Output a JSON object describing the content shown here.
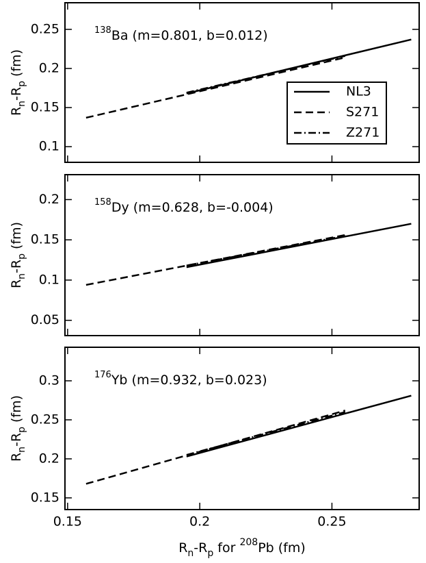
{
  "chart_data": [
    {
      "type": "line",
      "annotation_sup": "138",
      "annotation": "Ba (m=0.801, b=0.012)",
      "ylabel": [
        {
          "text": "R"
        },
        {
          "text": "n",
          "shift": "sub"
        },
        {
          "text": "-R"
        },
        {
          "text": "p",
          "shift": "sub"
        },
        {
          "text": " (fm)"
        }
      ],
      "xlim": [
        0.149,
        0.283
      ],
      "xticks": [
        0.15,
        0.2,
        0.25
      ],
      "xticklabels": false,
      "ylim": [
        0.08,
        0.284
      ],
      "yticks": [
        0.1,
        0.15,
        0.2,
        0.25
      ],
      "legend": "upper right",
      "series": [
        {
          "name": "NL3",
          "color": "#000000",
          "dash": "solid",
          "x": [
            0.195,
            0.28
          ],
          "values": [
            0.168,
            0.237
          ]
        },
        {
          "name": "S271",
          "color": "#000000",
          "dash": "dashed",
          "x": [
            0.157,
            0.255
          ],
          "values": [
            0.137,
            0.214
          ]
        },
        {
          "name": "Z271",
          "color": "#000000",
          "dash": "dashdot",
          "x": [
            0.195,
            0.255
          ],
          "values": [
            0.169,
            0.216
          ]
        }
      ]
    },
    {
      "type": "line",
      "annotation_sup": "158",
      "annotation": "Dy (m=0.628, b=-0.004)",
      "ylabel": [
        {
          "text": "R"
        },
        {
          "text": "n",
          "shift": "sub"
        },
        {
          "text": "-R"
        },
        {
          "text": "p",
          "shift": "sub"
        },
        {
          "text": " (fm)"
        }
      ],
      "xlim": [
        0.149,
        0.283
      ],
      "xticks": [
        0.15,
        0.2,
        0.25
      ],
      "xticklabels": false,
      "ylim": [
        0.031,
        0.231
      ],
      "yticks": [
        0.05,
        0.1,
        0.15,
        0.2
      ],
      "series": [
        {
          "color": "#000000",
          "dash": "solid",
          "x": [
            0.195,
            0.28
          ],
          "values": [
            0.116,
            0.17
          ]
        },
        {
          "color": "#000000",
          "dash": "dashed",
          "x": [
            0.157,
            0.255
          ],
          "values": [
            0.094,
            0.156
          ]
        },
        {
          "color": "#000000",
          "dash": "dashdot",
          "x": [
            0.195,
            0.255
          ],
          "values": [
            0.118,
            0.155
          ]
        }
      ]
    },
    {
      "type": "line",
      "annotation_sup": "176",
      "annotation": "Yb (m=0.932, b=0.023)",
      "ylabel": [
        {
          "text": "R"
        },
        {
          "text": "n",
          "shift": "sub"
        },
        {
          "text": "-R"
        },
        {
          "text": "p",
          "shift": "sub"
        },
        {
          "text": " (fm)"
        }
      ],
      "xlabel": [
        {
          "text": "R"
        },
        {
          "text": "n",
          "shift": "sub"
        },
        {
          "text": "-R"
        },
        {
          "text": "p",
          "shift": "sub"
        },
        {
          "text": " for "
        },
        {
          "text": "208",
          "shift": "sup"
        },
        {
          "text": "Pb (fm)"
        }
      ],
      "xlim": [
        0.149,
        0.283
      ],
      "xticks": [
        0.15,
        0.2,
        0.25
      ],
      "xticklabels": true,
      "ylim": [
        0.135,
        0.343
      ],
      "yticks": [
        0.15,
        0.2,
        0.25,
        0.3
      ],
      "series": [
        {
          "color": "#000000",
          "dash": "solid",
          "x": [
            0.195,
            0.28
          ],
          "values": [
            0.203,
            0.281
          ]
        },
        {
          "color": "#000000",
          "dash": "dashed",
          "x": [
            0.157,
            0.255
          ],
          "values": [
            0.168,
            0.262
          ]
        },
        {
          "color": "#000000",
          "dash": "dashdot",
          "x": [
            0.195,
            0.255
          ],
          "values": [
            0.205,
            0.26
          ]
        }
      ]
    }
  ]
}
